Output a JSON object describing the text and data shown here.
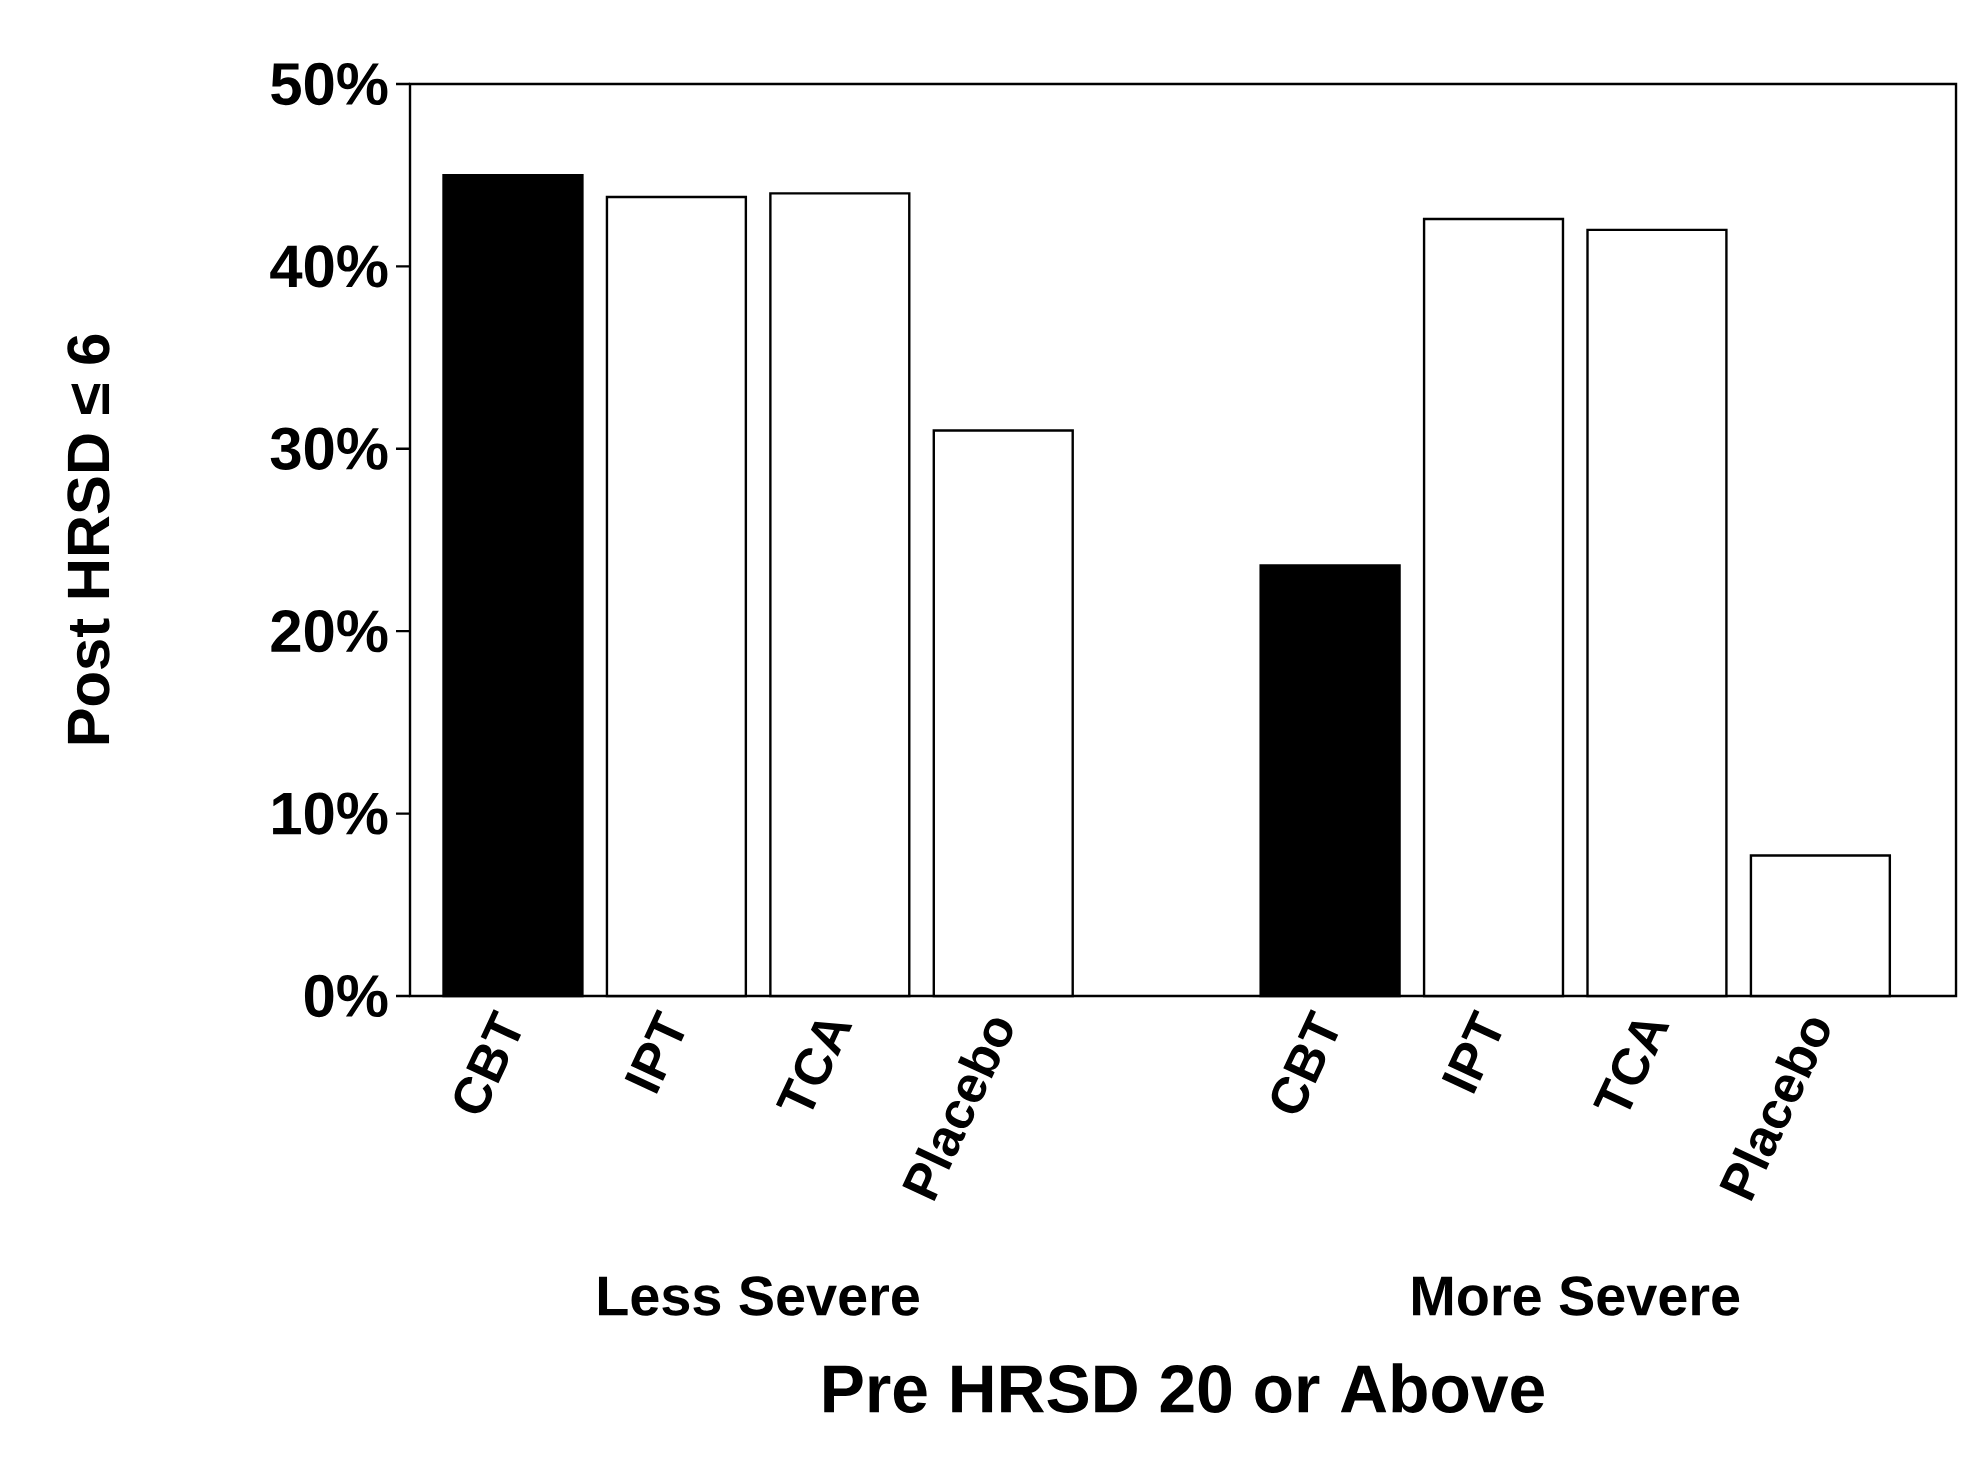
{
  "chart_data": {
    "type": "bar",
    "xlabel": "Pre HRSD 20 or Above",
    "ylabel": "Post HRSD ≤ 6",
    "categories": [
      "CBT",
      "IPT",
      "TCA",
      "Placebo",
      null,
      "CBT",
      "IPT",
      "TCA",
      "Placebo"
    ],
    "values": [
      45,
      43.8,
      44,
      31,
      null,
      23.6,
      42.6,
      42,
      7.7
    ],
    "colors": [
      "#000000",
      "#ffffff",
      "#ffffff",
      "#ffffff",
      null,
      "#000000",
      "#ffffff",
      "#ffffff",
      "#ffffff"
    ],
    "ylim": [
      0,
      50
    ],
    "yticks": [
      {
        "value": 0,
        "label": "0%"
      },
      {
        "value": 10,
        "label": "10%"
      },
      {
        "value": 20,
        "label": "20%"
      },
      {
        "value": 30,
        "label": "30%"
      },
      {
        "value": 40,
        "label": "40%"
      },
      {
        "value": 50,
        "label": "50%"
      }
    ],
    "annotations": [
      "Less Severe",
      "More Severe"
    ],
    "grid": false,
    "legend": false
  }
}
